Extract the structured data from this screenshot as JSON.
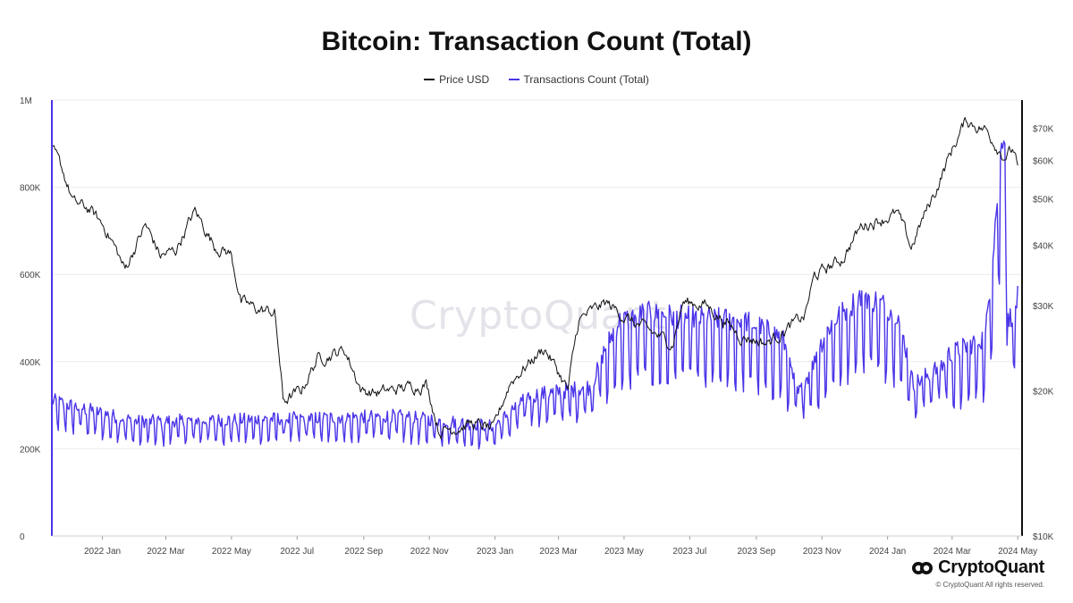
{
  "title": "Bitcoin: Transaction Count (Total)",
  "watermark": "CryptoQuant",
  "brand": {
    "name": "CryptoQuant",
    "copyright": "© CryptoQuant All rights reserved."
  },
  "colors": {
    "price": "#111111",
    "transactions": "#4a35e8",
    "grid": "#ececec"
  },
  "chart_data": {
    "type": "line",
    "series": [
      {
        "name": "Price USD",
        "axis": "right",
        "color": "#111111"
      },
      {
        "name": "Transactions Count (Total)",
        "axis": "left",
        "color": "#4a35e8"
      }
    ],
    "y_left": {
      "ticks": [
        0,
        200000,
        400000,
        600000,
        800000,
        1000000
      ],
      "tick_labels": [
        "0",
        "200K",
        "400K",
        "600K",
        "800K",
        "1M"
      ],
      "range": [
        0,
        1000000
      ]
    },
    "y_right": {
      "scale": "log",
      "range": [
        10000,
        80000
      ],
      "ticks": [
        10000,
        20000,
        30000,
        40000,
        50000,
        60000,
        70000
      ],
      "tick_labels": [
        "$10K",
        "$20K",
        "$30K",
        "$40K",
        "$50K",
        "$60K",
        "$70K"
      ]
    },
    "x_ticks": [
      {
        "date": "2022-01-01",
        "label": "2022 Jan"
      },
      {
        "date": "2022-03-01",
        "label": "2022 Mar"
      },
      {
        "date": "2022-05-01",
        "label": "2022 May"
      },
      {
        "date": "2022-07-01",
        "label": "2022 Jul"
      },
      {
        "date": "2022-09-01",
        "label": "2022 Sep"
      },
      {
        "date": "2022-11-01",
        "label": "2022 Nov"
      },
      {
        "date": "2023-01-01",
        "label": "2023 Jan"
      },
      {
        "date": "2023-03-01",
        "label": "2023 Mar"
      },
      {
        "date": "2023-05-01",
        "label": "2023 May"
      },
      {
        "date": "2023-07-01",
        "label": "2023 Jul"
      },
      {
        "date": "2023-09-01",
        "label": "2023 Sep"
      },
      {
        "date": "2023-11-01",
        "label": "2023 Nov"
      },
      {
        "date": "2024-01-01",
        "label": "2024 Jan"
      },
      {
        "date": "2024-03-01",
        "label": "2024 Mar"
      },
      {
        "date": "2024-05-01",
        "label": "2024 May"
      }
    ],
    "x_range": [
      "2021-11-15",
      "2024-05-05"
    ],
    "price_points": [
      [
        "2021-11-15",
        63000
      ],
      [
        "2021-11-25",
        57000
      ],
      [
        "2021-12-05",
        49000
      ],
      [
        "2021-12-20",
        47500
      ],
      [
        "2022-01-05",
        43000
      ],
      [
        "2022-01-22",
        35500
      ],
      [
        "2022-02-10",
        44000
      ],
      [
        "2022-02-24",
        38000
      ],
      [
        "2022-03-10",
        39000
      ],
      [
        "2022-03-28",
        47000
      ],
      [
        "2022-04-15",
        40000
      ],
      [
        "2022-04-30",
        38500
      ],
      [
        "2022-05-10",
        30500
      ],
      [
        "2022-05-25",
        29500
      ],
      [
        "2022-06-10",
        29000
      ],
      [
        "2022-06-18",
        19000
      ],
      [
        "2022-07-05",
        20000
      ],
      [
        "2022-07-20",
        23300
      ],
      [
        "2022-08-14",
        24300
      ],
      [
        "2022-08-30",
        20000
      ],
      [
        "2022-09-15",
        19800
      ],
      [
        "2022-10-05",
        20200
      ],
      [
        "2022-10-29",
        20700
      ],
      [
        "2022-11-10",
        16500
      ],
      [
        "2022-12-10",
        17100
      ],
      [
        "2022-12-31",
        16600
      ],
      [
        "2023-01-15",
        20800
      ],
      [
        "2023-02-16",
        24500
      ],
      [
        "2023-03-10",
        20000
      ],
      [
        "2023-03-20",
        28000
      ],
      [
        "2023-04-14",
        30400
      ],
      [
        "2023-05-10",
        27600
      ],
      [
        "2023-06-15",
        25000
      ],
      [
        "2023-06-25",
        30500
      ],
      [
        "2023-07-15",
        30200
      ],
      [
        "2023-08-17",
        26000
      ],
      [
        "2023-09-11",
        25100
      ],
      [
        "2023-10-16",
        28500
      ],
      [
        "2023-10-25",
        34500
      ],
      [
        "2023-11-20",
        37500
      ],
      [
        "2023-12-08",
        44000
      ],
      [
        "2024-01-10",
        46500
      ],
      [
        "2024-01-23",
        39500
      ],
      [
        "2024-02-15",
        52000
      ],
      [
        "2024-03-05",
        66000
      ],
      [
        "2024-03-14",
        72500
      ],
      [
        "2024-04-01",
        69500
      ],
      [
        "2024-04-18",
        61500
      ],
      [
        "2024-04-28",
        63000
      ],
      [
        "2024-05-01",
        57500
      ]
    ],
    "tx_points": [
      [
        "2021-11-15",
        295000
      ],
      [
        "2022-02-01",
        250000
      ],
      [
        "2022-06-01",
        255000
      ],
      [
        "2022-10-01",
        262000
      ],
      [
        "2022-12-31",
        240000
      ],
      [
        "2023-02-01",
        305000
      ],
      [
        "2023-03-30",
        325000
      ],
      [
        "2023-04-25",
        450000
      ],
      [
        "2023-05-20",
        470000
      ],
      [
        "2023-07-01",
        460000
      ],
      [
        "2023-08-20",
        455000
      ],
      [
        "2023-09-25",
        420000
      ],
      [
        "2023-10-10",
        310000
      ],
      [
        "2023-11-10",
        450000
      ],
      [
        "2023-12-10",
        510000
      ],
      [
        "2024-01-10",
        470000
      ],
      [
        "2024-01-25",
        330000
      ],
      [
        "2024-02-25",
        380000
      ],
      [
        "2024-04-01",
        420000
      ],
      [
        "2024-04-19",
        900000
      ],
      [
        "2024-04-22",
        450000
      ],
      [
        "2024-05-01",
        500000
      ]
    ],
    "tx_peak_date": "2024-04-19",
    "tx_peak_value": 900000,
    "legend_position": "top-center",
    "grid": "horizontal"
  }
}
